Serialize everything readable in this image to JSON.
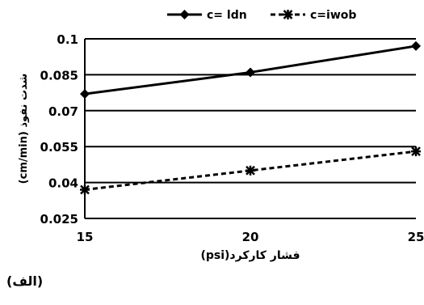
{
  "caption": "(الف)",
  "chart_data": {
    "type": "line",
    "xlabel": "فشار کارکرد(psi)",
    "ylabel": "شدت نفوذ (cm/min)",
    "x": [
      15,
      20,
      25
    ],
    "xticks": [
      "15",
      "20",
      "25"
    ],
    "ylim": [
      0.025,
      0.1
    ],
    "yticks": [
      "0.025",
      "0.04",
      "0.055",
      "0.07",
      "0.085",
      "0.1"
    ],
    "grid": "horizontal",
    "legend_position": "top",
    "series": [
      {
        "name": "c= ldn",
        "values": [
          0.077,
          0.086,
          0.097
        ],
        "style": "solid",
        "marker": "diamond",
        "color": "#000000"
      },
      {
        "name": "c=iwob",
        "values": [
          0.037,
          0.045,
          0.053
        ],
        "style": "dashed",
        "marker": "asterisk",
        "color": "#000000"
      }
    ]
  }
}
